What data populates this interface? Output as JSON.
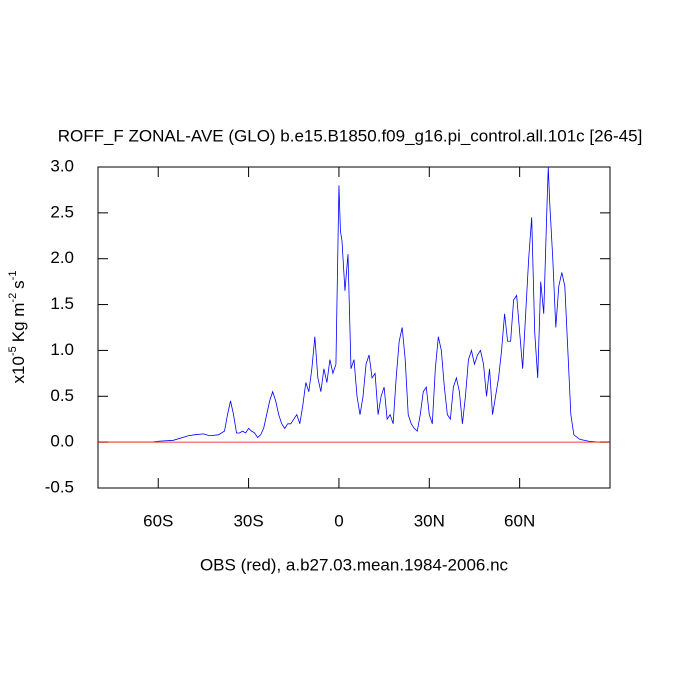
{
  "chart_data": {
    "type": "line",
    "title": "ROFF_F ZONAL-AVE (GLO) b.e15.B1850.f09_g16.pi_control.all.101c [26-45]",
    "x_label": "OBS (red), a.b27.03.mean.1984-2006.nc",
    "y_label": [
      "x10",
      "-5",
      "Kg m",
      "-2",
      "s",
      "-1"
    ],
    "xlim": [
      -80,
      90
    ],
    "ylim": [
      -0.5,
      3.0
    ],
    "xticks": [
      {
        "value": -60,
        "label": "60S"
      },
      {
        "value": -30,
        "label": "30S"
      },
      0,
      {
        "value": 30,
        "label": "30N"
      },
      {
        "value": 60,
        "label": "60N"
      }
    ],
    "yticks": [
      {
        "value": -0.5,
        "label": "-0.5"
      },
      {
        "value": 0,
        "label": "0.0"
      },
      {
        "value": 0.5,
        "label": "0.5"
      },
      {
        "value": 1,
        "label": "1.0"
      },
      {
        "value": 1.5,
        "label": "1.5"
      },
      {
        "value": 2,
        "label": "2.0"
      },
      {
        "value": 2.5,
        "label": "2.5"
      },
      {
        "value": 3,
        "label": "3.0"
      }
    ],
    "series": [
      {
        "color": "#0000ff",
        "x": [
          -80,
          -70,
          -62,
          -60,
          -55,
          -50,
          -48,
          -45,
          -43,
          -40,
          -38,
          -37,
          -36,
          -35,
          -34,
          -33,
          -32,
          -31,
          -30,
          -29,
          -28,
          -27,
          -26,
          -25,
          -24,
          -23,
          -22,
          -21,
          -20,
          -19,
          -18,
          -17,
          -16,
          -15,
          -14,
          -13,
          -12,
          -11,
          -10,
          -9,
          -8,
          -7,
          -6,
          -5,
          -4,
          -3,
          -2,
          -1,
          0,
          0.5,
          1,
          2,
          3,
          4,
          5,
          6,
          7,
          8,
          9,
          10,
          11,
          12,
          13,
          14,
          15,
          16,
          17,
          18,
          19,
          20,
          21,
          22,
          23,
          24,
          25,
          26,
          27,
          28,
          29,
          30,
          31,
          32,
          33,
          34,
          35,
          36,
          37,
          38,
          39,
          40,
          41,
          42,
          43,
          44,
          45,
          46,
          47,
          48,
          49,
          50,
          51,
          52,
          53,
          54,
          55,
          56,
          57,
          58,
          59,
          60,
          61,
          62,
          63,
          64,
          65,
          66,
          67,
          68,
          69,
          69.5,
          70,
          71,
          72,
          73,
          74,
          75,
          76,
          77,
          78,
          80,
          83,
          86,
          90
        ],
        "values": [
          0,
          0,
          0,
          0.01,
          0.02,
          0.07,
          0.08,
          0.09,
          0.07,
          0.08,
          0.12,
          0.3,
          0.45,
          0.3,
          0.1,
          0.1,
          0.12,
          0.1,
          0.15,
          0.12,
          0.1,
          0.05,
          0.08,
          0.15,
          0.3,
          0.45,
          0.55,
          0.45,
          0.3,
          0.2,
          0.15,
          0.2,
          0.2,
          0.25,
          0.3,
          0.2,
          0.4,
          0.65,
          0.55,
          0.8,
          1.15,
          0.7,
          0.55,
          0.8,
          0.65,
          0.9,
          0.75,
          0.85,
          2.8,
          2.3,
          2.2,
          1.65,
          2.05,
          0.8,
          0.9,
          0.5,
          0.3,
          0.5,
          0.85,
          0.95,
          0.7,
          0.75,
          0.3,
          0.5,
          0.6,
          0.25,
          0.3,
          0.2,
          0.7,
          1.1,
          1.25,
          0.9,
          0.3,
          0.2,
          0.15,
          0.12,
          0.3,
          0.55,
          0.6,
          0.3,
          0.2,
          0.8,
          1.15,
          1.0,
          0.6,
          0.3,
          0.25,
          0.6,
          0.7,
          0.55,
          0.2,
          0.5,
          0.9,
          1.0,
          0.85,
          0.95,
          1.0,
          0.85,
          0.5,
          0.8,
          0.3,
          0.5,
          0.7,
          1.0,
          1.4,
          1.1,
          1.1,
          1.55,
          1.6,
          1.2,
          0.8,
          1.4,
          2.0,
          2.45,
          1.2,
          0.7,
          1.75,
          1.4,
          2.5,
          3.0,
          2.6,
          2.0,
          1.25,
          1.7,
          1.85,
          1.7,
          1.0,
          0.3,
          0.08,
          0.03,
          0.01,
          0,
          0
        ]
      },
      {
        "color": "#ff0000",
        "x": [
          -80,
          90
        ],
        "values": [
          0,
          0
        ]
      }
    ]
  }
}
